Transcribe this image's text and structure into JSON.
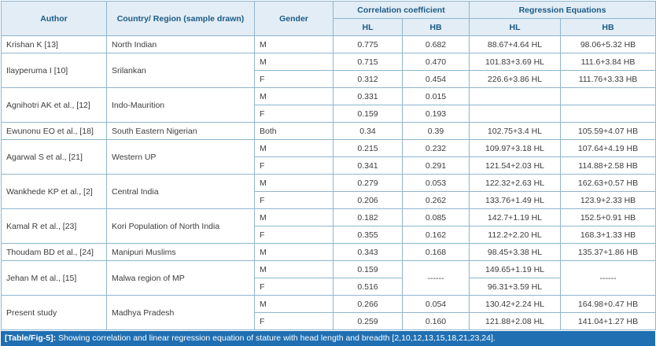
{
  "headers": {
    "author": "Author",
    "region": "Country/ Region (sample drawn)",
    "gender": "Gender",
    "correlation": "Correlation coefficient",
    "regression": "Regression Equations",
    "corr_hl": "HL",
    "corr_hb": "HB",
    "reg_hl": "HL",
    "reg_hb": "HB"
  },
  "groups": [
    {
      "author": "Krishan K [13]",
      "region": "North Indian",
      "rows": [
        {
          "gender": "M",
          "corr_hl": "0.775",
          "corr_hb": "0.682",
          "reg_hl": "88.67+4.64 HL",
          "reg_hb": "98.06+5.32 HB"
        }
      ]
    },
    {
      "author": "Ilayperuma I [10]",
      "region": "Srilankan",
      "rows": [
        {
          "gender": "M",
          "corr_hl": "0.715",
          "corr_hb": "0.470",
          "reg_hl": "101.83+3.69 HL",
          "reg_hb": "111.6+3.84 HB"
        },
        {
          "gender": "F",
          "corr_hl": "0.312",
          "corr_hb": "0.454",
          "reg_hl": "226.6+3.86 HL",
          "reg_hb": "111.76+3.33 HB"
        }
      ]
    },
    {
      "author": "Agnihotri AK et al., [12]",
      "region": "Indo-Maurition",
      "rows": [
        {
          "gender": "M",
          "corr_hl": "0.331",
          "corr_hb": "0.015",
          "reg_hl": "",
          "reg_hb": ""
        },
        {
          "gender": "F",
          "corr_hl": "0.159",
          "corr_hb": "0.193",
          "reg_hl": "",
          "reg_hb": ""
        }
      ]
    },
    {
      "author": "Ewunonu EO et al., [18]",
      "region": "South Eastern Nigerian",
      "rows": [
        {
          "gender": "Both",
          "corr_hl": "0.34",
          "corr_hb": "0.39",
          "reg_hl": "102.75+3.4 HL",
          "reg_hb": "105.59+4.07 HB"
        }
      ]
    },
    {
      "author": "Agarwal S et al., [21]",
      "region": "Western UP",
      "rows": [
        {
          "gender": "M",
          "corr_hl": "0.215",
          "corr_hb": "0.232",
          "reg_hl": "109.97+3.18 HL",
          "reg_hb": "107.64+4.19 HB"
        },
        {
          "gender": "F",
          "corr_hl": "0.341",
          "corr_hb": "0.291",
          "reg_hl": "121.54+2.03 HL",
          "reg_hb": "114.88+2.58 HB"
        }
      ]
    },
    {
      "author": "Wankhede KP et al., [2]",
      "region": "Central India",
      "rows": [
        {
          "gender": "M",
          "corr_hl": "0.279",
          "corr_hb": "0.053",
          "reg_hl": "122.32+2.63 HL",
          "reg_hb": "162.63+0.57 HB"
        },
        {
          "gender": "F",
          "corr_hl": "0.206",
          "corr_hb": "0.262",
          "reg_hl": "133.76+1.49 HL",
          "reg_hb": "123.9+2.33 HB"
        }
      ]
    },
    {
      "author": "Kamal R et al., [23]",
      "region": "Kori Population of North India",
      "rows": [
        {
          "gender": "M",
          "corr_hl": "0.182",
          "corr_hb": "0.085",
          "reg_hl": "142.7+1.19 HL",
          "reg_hb": "152.5+0.91 HB"
        },
        {
          "gender": "F",
          "corr_hl": "0.355",
          "corr_hb": "0.162",
          "reg_hl": "112.2+2.20 HL",
          "reg_hb": "168.3+1.33 HB"
        }
      ]
    },
    {
      "author": "Thoudam BD et al., [24]",
      "region": "Manipuri Muslims",
      "rows": [
        {
          "gender": "M",
          "corr_hl": "0.343",
          "corr_hb": "0.168",
          "reg_hl": "98.45+3.38 HL",
          "reg_hb": "135.37+1.86 HB"
        }
      ]
    },
    {
      "author": "Jehan M et al., [15]",
      "region": "Malwa region of MP",
      "merged_hb": "------",
      "merged_reg_hb": "------",
      "rows": [
        {
          "gender": "M",
          "corr_hl": "0.159",
          "reg_hl": "149.65+1.19 HL"
        },
        {
          "gender": "F",
          "corr_hl": "0.516",
          "reg_hl": "96.31+3.59 HL"
        }
      ]
    },
    {
      "author": "Present study",
      "region": "Madhya Pradesh",
      "rows": [
        {
          "gender": "M",
          "corr_hl": "0.266",
          "corr_hb": "0.054",
          "reg_hl": "130.42+2.24 HL",
          "reg_hb": "164.98+0.47 HB"
        },
        {
          "gender": "F",
          "corr_hl": "0.259",
          "corr_hb": "0.160",
          "reg_hl": "121.88+2.08 HL",
          "reg_hb": "141.04+1.27 HB"
        }
      ]
    }
  ],
  "caption": {
    "label": "[Table/Fig-5]:",
    "text": " Showing correlation and linear regression equation of stature with head length and breadth [2,10,12,13,15,18,21,23,24]."
  }
}
